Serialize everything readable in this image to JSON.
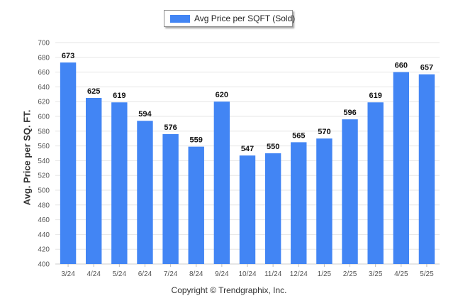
{
  "chart_data": {
    "type": "bar",
    "categories": [
      "3/24",
      "4/24",
      "5/24",
      "6/24",
      "7/24",
      "8/24",
      "9/24",
      "10/24",
      "11/24",
      "12/24",
      "1/25",
      "2/25",
      "3/25",
      "4/25",
      "5/25"
    ],
    "series": [
      {
        "name": "Avg Price per SQFT (Sold)",
        "values": [
          673,
          625,
          619,
          594,
          576,
          559,
          620,
          547,
          550,
          565,
          570,
          596,
          619,
          660,
          657
        ]
      }
    ],
    "ylabel": "Avg. Price per SQ. FT.",
    "xlabel": "",
    "ylim": [
      400,
      700
    ],
    "yticks": [
      400,
      420,
      440,
      460,
      480,
      500,
      520,
      540,
      560,
      580,
      600,
      620,
      640,
      660,
      680,
      700
    ],
    "grid": true,
    "legend_position": "top-center",
    "data_labels": true,
    "bar_color": "#4285f4",
    "footer": "Copyright © Trendgraphix, Inc."
  }
}
